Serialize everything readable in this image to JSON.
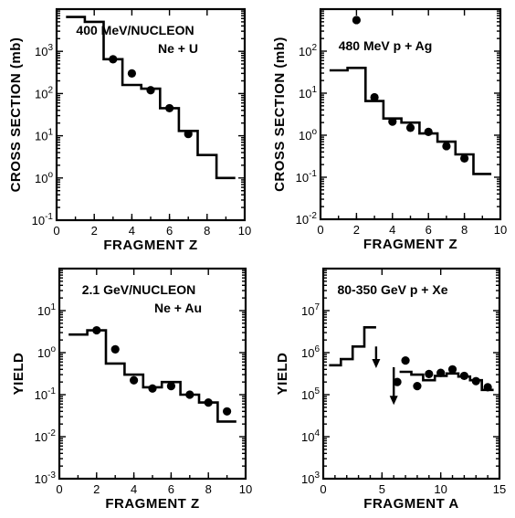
{
  "chart_data": [
    {
      "type": "line",
      "title": "400 MeV/NUCLEON",
      "subtitle": "Ne + U",
      "xlabel": "FRAGMENT Z",
      "ylabel": "CROSS SECTION (mb)",
      "yscale": "log",
      "xlim": [
        0,
        10
      ],
      "ylim": [
        0.1,
        10000
      ],
      "xticks": [
        "0",
        "2",
        "4",
        "6",
        "8",
        "10"
      ],
      "yticks": [
        "10-1",
        "10o",
        "101",
        "102",
        "103"
      ],
      "series": [
        {
          "kind": "histogram",
          "edges": [
            0.5,
            1.5,
            2.5,
            3.5,
            4.5,
            5.5,
            6.5,
            7.5,
            8.5,
            9.5
          ],
          "values": [
            6500,
            5000,
            650,
            160,
            130,
            45,
            13,
            3.5,
            1.0
          ]
        },
        {
          "kind": "points",
          "x": [
            3,
            4,
            5,
            6,
            7
          ],
          "y": [
            650,
            300,
            120,
            45,
            11
          ]
        }
      ]
    },
    {
      "type": "line",
      "title": "480 MeV p + Ag",
      "xlabel": "FRAGMENT Z",
      "ylabel": "CROSS SECTION (mb)",
      "yscale": "log",
      "xlim": [
        0,
        10
      ],
      "ylim": [
        0.01,
        1000
      ],
      "xticks": [
        "0",
        "2",
        "4",
        "6",
        "8",
        "10"
      ],
      "yticks": [
        "10-2",
        "10-1",
        "10o",
        "101",
        "102"
      ],
      "series": [
        {
          "kind": "histogram",
          "edges": [
            0.5,
            1.5,
            2.5,
            3.5,
            4.5,
            5.5,
            6.5,
            7.5,
            8.5,
            9.5
          ],
          "values": [
            35,
            40,
            6.5,
            2.5,
            2.0,
            1.1,
            0.7,
            0.35,
            0.12
          ]
        },
        {
          "kind": "points",
          "x": [
            2,
            3,
            4,
            5,
            6,
            7,
            8
          ],
          "y": [
            550,
            8,
            2.1,
            1.5,
            1.2,
            0.55,
            0.28
          ]
        }
      ]
    },
    {
      "type": "line",
      "title": "2.1 GeV/NUCLEON",
      "subtitle": "Ne + Au",
      "xlabel": "FRAGMENT Z",
      "ylabel": "YIELD",
      "yscale": "log",
      "xlim": [
        0,
        10
      ],
      "ylim": [
        0.001,
        100
      ],
      "xticks": [
        "0",
        "2",
        "4",
        "6",
        "8",
        "10"
      ],
      "yticks": [
        "10-3",
        "10-2",
        "10-1",
        "10o",
        "101"
      ],
      "series": [
        {
          "kind": "histogram",
          "edges": [
            0.5,
            1.5,
            2.5,
            3.5,
            4.5,
            5.5,
            6.5,
            7.5,
            8.5,
            9.5
          ],
          "values": [
            2.7,
            3.4,
            0.55,
            0.3,
            0.15,
            0.2,
            0.1,
            0.065,
            0.023
          ]
        },
        {
          "kind": "points",
          "x": [
            2,
            3,
            4,
            5,
            6,
            7,
            8,
            9
          ],
          "y": [
            3.4,
            1.2,
            0.22,
            0.14,
            0.16,
            0.1,
            0.065,
            0.04
          ]
        }
      ]
    },
    {
      "type": "line",
      "title": "80-350 GeV p + Xe",
      "xlabel": "FRAGMENT A",
      "ylabel": "YIELD",
      "yscale": "log",
      "xlim": [
        0,
        15
      ],
      "ylim": [
        1000,
        100000000
      ],
      "xticks": [
        "0",
        "5",
        "10",
        "15"
      ],
      "yticks": [
        "103",
        "104",
        "105",
        "106",
        "107"
      ],
      "series": [
        {
          "kind": "histogram",
          "edges": [
            0.5,
            1.5,
            2.5,
            3.5,
            4.5
          ],
          "values": [
            500000,
            700000,
            1400000,
            4000000
          ]
        },
        {
          "kind": "histogram",
          "edges": [
            6.5,
            7.5,
            8.5,
            9.5,
            10.5,
            11.5,
            12.5,
            13.5,
            14.5
          ],
          "values": [
            350000,
            300000,
            220000,
            280000,
            320000,
            270000,
            220000,
            130000
          ]
        },
        {
          "kind": "upper_limit_arrow",
          "x": 4.5,
          "from": 1400000,
          "to": 450000
        },
        {
          "kind": "upper_limit_arrow",
          "x": 6.0,
          "from": 450000,
          "to": 60000
        },
        {
          "kind": "points",
          "x": [
            6.3,
            7,
            8,
            9,
            10,
            11,
            12,
            13,
            14
          ],
          "y": [
            200000,
            650000,
            160000,
            310000,
            330000,
            400000,
            280000,
            210000,
            150000
          ]
        }
      ]
    }
  ]
}
